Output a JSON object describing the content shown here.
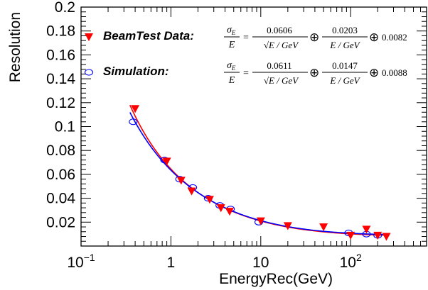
{
  "chart_data": {
    "type": "scatter",
    "title": "",
    "xlabel": "EnergyRec(GeV)",
    "ylabel": "Resolution",
    "x_scale": "log",
    "xlim": [
      0.1,
      700
    ],
    "ylim": [
      0,
      0.2
    ],
    "x_ticks": [
      {
        "value": 0.1,
        "base": "10",
        "exp": "−1"
      },
      {
        "value": 1,
        "base": "1",
        "exp": ""
      },
      {
        "value": 10,
        "base": "10",
        "exp": ""
      },
      {
        "value": 100,
        "base": "10",
        "exp": "2"
      }
    ],
    "y_ticks": [
      {
        "value": 0.02,
        "label": "0.02"
      },
      {
        "value": 0.04,
        "label": "0.04"
      },
      {
        "value": 0.06,
        "label": "0.06"
      },
      {
        "value": 0.08,
        "label": "0.08"
      },
      {
        "value": 0.1,
        "label": "0.1"
      },
      {
        "value": 0.12,
        "label": "0.12"
      },
      {
        "value": 0.14,
        "label": "0.14"
      },
      {
        "value": 0.16,
        "label": "0.16"
      },
      {
        "value": 0.18,
        "label": "0.18"
      },
      {
        "value": 0.2,
        "label": "0.2"
      }
    ],
    "grid": false,
    "legend_position": "top-left",
    "series": [
      {
        "name": "BeamTest Data:",
        "marker": "triangle-down",
        "color": "#ff0000",
        "fit_color": "#ff0000",
        "fit_params": {
          "a": 0.0606,
          "b": 0.0203,
          "c": 0.0082
        },
        "x": [
          0.4,
          0.9,
          1.3,
          1.7,
          2.7,
          3.6,
          4.5,
          10,
          20,
          50,
          100,
          150,
          200,
          250
        ],
        "y": [
          0.115,
          0.071,
          0.055,
          0.046,
          0.039,
          0.032,
          0.029,
          0.021,
          0.017,
          0.016,
          0.009,
          0.014,
          0.009,
          0.008
        ]
      },
      {
        "name": "Simulation:",
        "marker": "open-circle",
        "color": "#0000ff",
        "fit_color": "#0000ff",
        "fit_params": {
          "a": 0.0611,
          "b": 0.0147,
          "c": 0.0088
        },
        "x": [
          0.38,
          0.85,
          1.25,
          1.75,
          2.6,
          3.5,
          4.6,
          9.5,
          95,
          150,
          200
        ],
        "y": [
          0.104,
          0.072,
          0.056,
          0.049,
          0.04,
          0.034,
          0.031,
          0.02,
          0.011,
          0.01,
          0.009
        ]
      }
    ],
    "fit_range": [
      0.35,
      250
    ],
    "annotations": [
      {
        "series": "BeamTest Data:",
        "lhs_num": "σ",
        "lhs_sub": "E",
        "lhs_den": "E",
        "eq": "=",
        "t1_num": "0.0606",
        "t1_den": "√E / GeV",
        "op1": "⊕",
        "t2_num": "0.0203",
        "t2_den": "E / GeV",
        "op2": "⊕",
        "const": "0.0082"
      },
      {
        "series": "Simulation:",
        "lhs_num": "σ",
        "lhs_sub": "E",
        "lhs_den": "E",
        "eq": "=",
        "t1_num": "0.0611",
        "t1_den": "√E / GeV",
        "op1": "⊕",
        "t2_num": "0.0147",
        "t2_den": "E / GeV",
        "op2": "⊕",
        "const": "0.0088"
      }
    ]
  }
}
